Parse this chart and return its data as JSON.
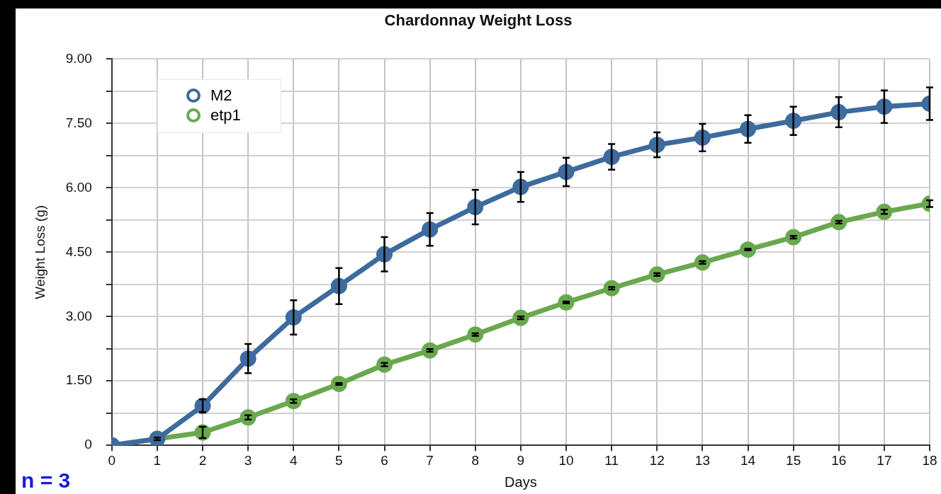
{
  "chart_data": {
    "type": "line",
    "title": "Chardonnay Weight Loss",
    "xlabel": "Days",
    "ylabel": "Weight Loss (g)",
    "x": [
      0,
      1,
      2,
      3,
      4,
      5,
      6,
      7,
      8,
      9,
      10,
      11,
      12,
      13,
      14,
      15,
      16,
      17,
      18
    ],
    "xlim": [
      0,
      18
    ],
    "xticks": [
      0,
      1,
      2,
      3,
      4,
      5,
      6,
      7,
      8,
      9,
      10,
      11,
      12,
      13,
      14,
      15,
      16,
      17,
      18
    ],
    "ylim": [
      0,
      9
    ],
    "yticks": [
      0,
      {
        "value": 0.75,
        "label": null
      },
      {
        "value": 1.5,
        "label": "1.50"
      },
      {
        "value": 2.25,
        "label": null
      },
      {
        "value": 3,
        "label": "3.00"
      },
      {
        "value": 3.75,
        "label": null
      },
      {
        "value": 4.5,
        "label": "4.50"
      },
      {
        "value": 5.25,
        "label": null
      },
      {
        "value": 6,
        "label": "6.00"
      },
      {
        "value": 6.75,
        "label": null
      },
      {
        "value": 7.5,
        "label": "7.50"
      },
      {
        "value": 8.25,
        "label": null
      },
      {
        "value": 9,
        "label": "9.00"
      }
    ],
    "series": [
      {
        "name": "M2",
        "color": "#3d6b9e",
        "values": [
          0,
          0.15,
          0.92,
          2.02,
          2.98,
          3.71,
          4.45,
          5.03,
          5.55,
          6.02,
          6.37,
          6.72,
          7.0,
          7.17,
          7.37,
          7.56,
          7.76,
          7.89,
          7.96
        ],
        "errors": [
          null,
          0.03,
          0.15,
          0.34,
          0.4,
          0.42,
          0.4,
          0.38,
          0.4,
          0.35,
          0.33,
          0.3,
          0.29,
          0.32,
          0.32,
          0.33,
          0.35,
          0.38,
          0.38
        ]
      },
      {
        "name": "etp1",
        "color": "#6aa84f",
        "values": [
          0,
          null,
          0.3,
          0.65,
          1.03,
          1.43,
          1.88,
          2.21,
          2.58,
          2.97,
          3.33,
          3.66,
          3.98,
          4.26,
          4.56,
          4.85,
          5.2,
          5.44,
          5.63
        ],
        "errors": [
          null,
          null,
          0.13,
          0.05,
          0.04,
          0.02,
          0.04,
          0.03,
          0.03,
          0.03,
          0.02,
          0.03,
          0.03,
          0.03,
          0.02,
          0.03,
          0.03,
          0.05,
          0.08
        ]
      }
    ],
    "annotations": [
      "n = 3"
    ],
    "grid": true,
    "legend": "top left",
    "marker": "circle",
    "line_style": "solid"
  }
}
